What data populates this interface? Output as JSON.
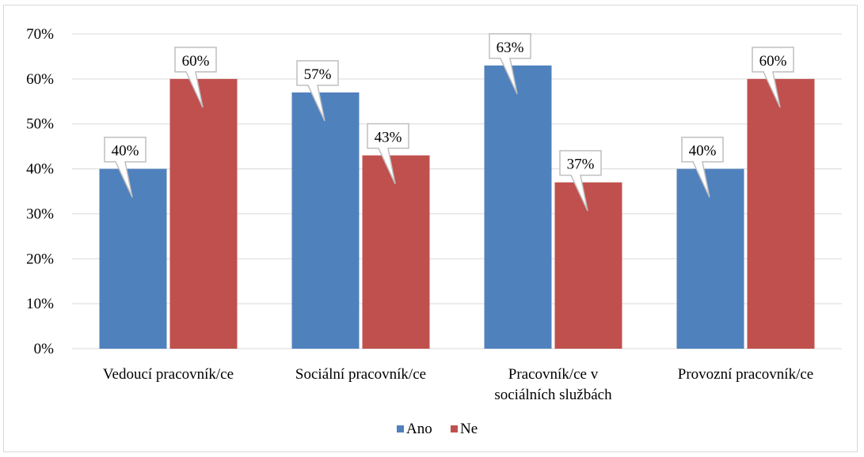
{
  "chart_data": {
    "type": "bar",
    "categories": [
      [
        "Vedoucí pracovník/ce"
      ],
      [
        "Sociální pracovník/ce"
      ],
      [
        "Pracovník/ce v",
        "sociálních službách"
      ],
      [
        "Provozní pracovník/ce"
      ]
    ],
    "series": [
      {
        "name": "Ano",
        "values": [
          0.4,
          0.57,
          0.63,
          0.4
        ],
        "labels": [
          "40%",
          "57%",
          "63%",
          "40%"
        ],
        "color": "#4f81bd"
      },
      {
        "name": "Ne",
        "values": [
          0.6,
          0.43,
          0.37,
          0.6
        ],
        "labels": [
          "60%",
          "43%",
          "37%",
          "60%"
        ],
        "color": "#c0504d"
      }
    ],
    "ylim": [
      0,
      0.7
    ],
    "yticks": [
      "0%",
      "10%",
      "20%",
      "30%",
      "40%",
      "50%",
      "60%",
      "70%"
    ],
    "grid": true,
    "legend": "bottom",
    "xlabel": "",
    "ylabel": ""
  }
}
